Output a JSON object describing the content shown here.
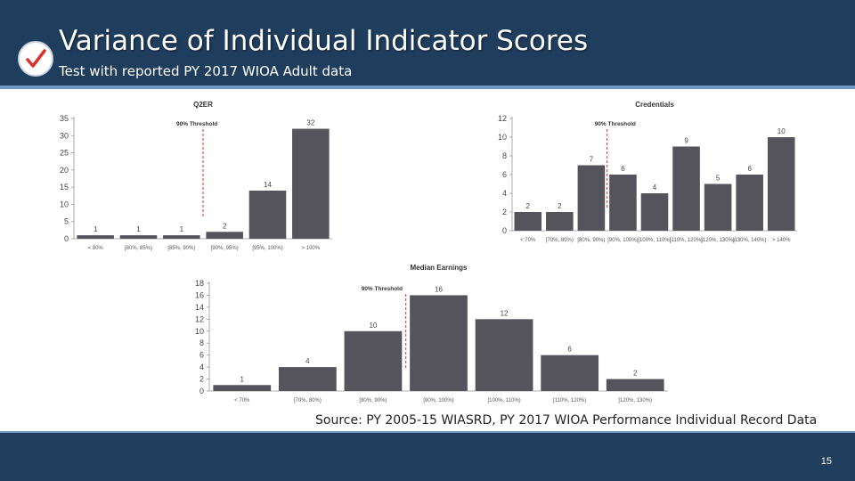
{
  "slide": {
    "title": "Variance of Individual Indicator Scores",
    "subtitle": "Test with reported PY 2017 WIOA Adult data",
    "source": "Source: PY 2005-15 WIASRD, PY 2017 WIOA Performance Individual Record Data",
    "page_number": "15",
    "colors": {
      "header": "#1f3d5c",
      "accent": "#6f97c4",
      "bar": "#55545d",
      "threshold": "#c0392b",
      "check": "#d9342b"
    }
  },
  "chart_data": [
    {
      "type": "bar",
      "title": "Q2ER",
      "categories": [
        "< 80%",
        "[80%, 85%)",
        "[85%, 90%)",
        "[90%, 95%)",
        "[95%, 100%)",
        "> 100%"
      ],
      "values": [
        1,
        1,
        1,
        2,
        14,
        32
      ],
      "ylim": [
        0,
        35
      ],
      "yticks": [
        0,
        5,
        10,
        15,
        20,
        25,
        30,
        35
      ],
      "threshold": {
        "label": "90% Threshold",
        "after_index": 2
      }
    },
    {
      "type": "bar",
      "title": "Credentials",
      "categories": [
        "< 70%",
        "[70%, 80%)",
        "[80%, 90%)",
        "[90%, 100%)",
        "[100%, 110%)",
        "[110%, 120%)",
        "[120%, 130%)",
        "[130%, 140%)",
        "> 140%"
      ],
      "values": [
        2,
        2,
        7,
        6,
        4,
        9,
        5,
        6,
        10
      ],
      "ylim": [
        0,
        12
      ],
      "yticks": [
        0,
        2,
        4,
        6,
        8,
        10,
        12
      ],
      "threshold": {
        "label": "90% Threshold",
        "after_index": 2
      }
    },
    {
      "type": "bar",
      "title": "Median Earnings",
      "categories": [
        "< 70%",
        "[70%, 80%)",
        "[80%, 90%)",
        "[90%, 100%)",
        "[100%, 110%)",
        "[110%, 120%)",
        "[120%, 130%)"
      ],
      "values": [
        1,
        4,
        10,
        16,
        12,
        6,
        2
      ],
      "ylim": [
        0,
        18
      ],
      "yticks": [
        0,
        2,
        4,
        6,
        8,
        10,
        12,
        14,
        16,
        18
      ],
      "threshold": {
        "label": "90% Threshold",
        "after_index": 2
      }
    }
  ]
}
